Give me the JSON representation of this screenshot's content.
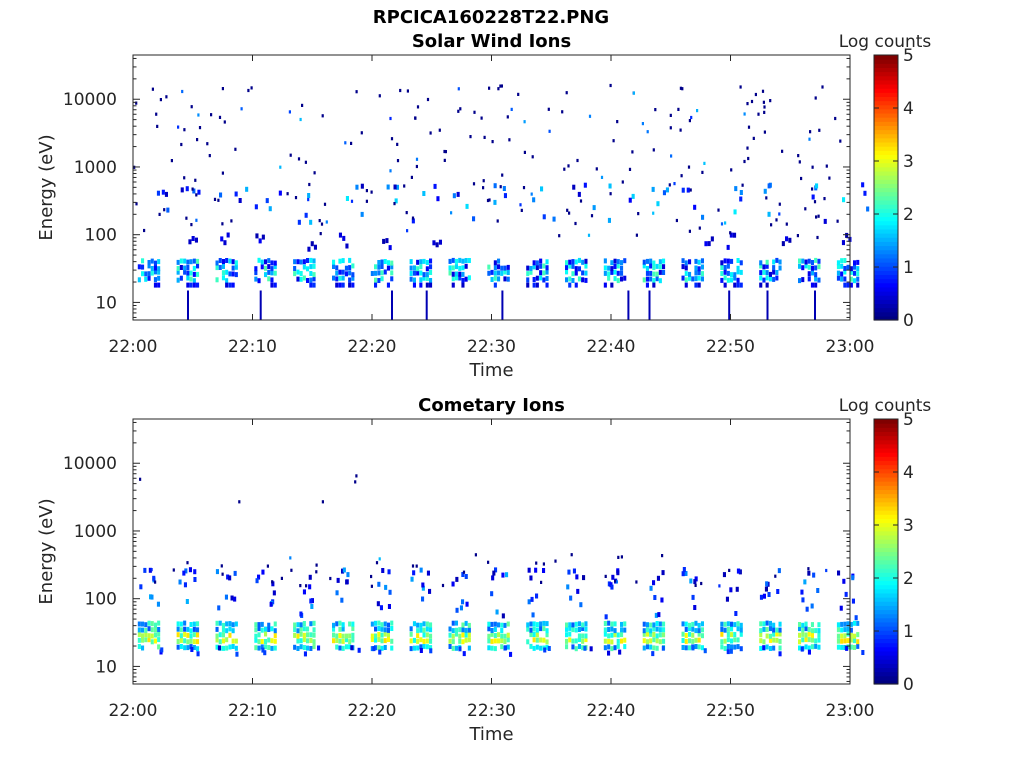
{
  "figure": {
    "title": "RPCICA160228T22.PNG"
  },
  "chart_data": [
    {
      "type": "heatmap",
      "title": "Solar Wind Ions",
      "xlabel": "Time",
      "ylabel": "Energy (eV)",
      "x_ticks": [
        "22:00",
        "22:10",
        "22:20",
        "22:30",
        "22:40",
        "22:50",
        "23:00"
      ],
      "y_ticks": [
        "10",
        "100",
        "1000",
        "10000"
      ],
      "y_scale": "log",
      "ylim": [
        5.5,
        45000
      ],
      "xlim": [
        "22:00",
        "23:00"
      ],
      "colorbar": {
        "label": "Log counts",
        "ticks": [
          "0",
          "1",
          "2",
          "3",
          "4",
          "5"
        ],
        "range": [
          0,
          5
        ],
        "colormap": "jet"
      },
      "pattern": "sparse scattered counts 100-15000 eV; periodic bursts about every 3.2 min near 20-40 eV with Log counts up to ~2.5"
    },
    {
      "type": "heatmap",
      "title": "Cometary Ions",
      "xlabel": "Time",
      "ylabel": "Energy (eV)",
      "x_ticks": [
        "22:00",
        "22:10",
        "22:20",
        "22:30",
        "22:40",
        "22:50",
        "23:00"
      ],
      "y_ticks": [
        "10",
        "100",
        "1000",
        "10000"
      ],
      "y_scale": "log",
      "ylim": [
        5.5,
        45000
      ],
      "xlim": [
        "22:00",
        "23:00"
      ],
      "colorbar": {
        "label": "Log counts",
        "ticks": [
          "0",
          "1",
          "2",
          "3",
          "4",
          "5"
        ],
        "range": [
          0,
          5
        ],
        "colormap": "jet"
      },
      "pattern": "periodic bursts about every 3.2 min at 15-40 eV with Log counts up to ~3.3, tails extending to ~300 eV; a few points near 5000 eV"
    }
  ]
}
